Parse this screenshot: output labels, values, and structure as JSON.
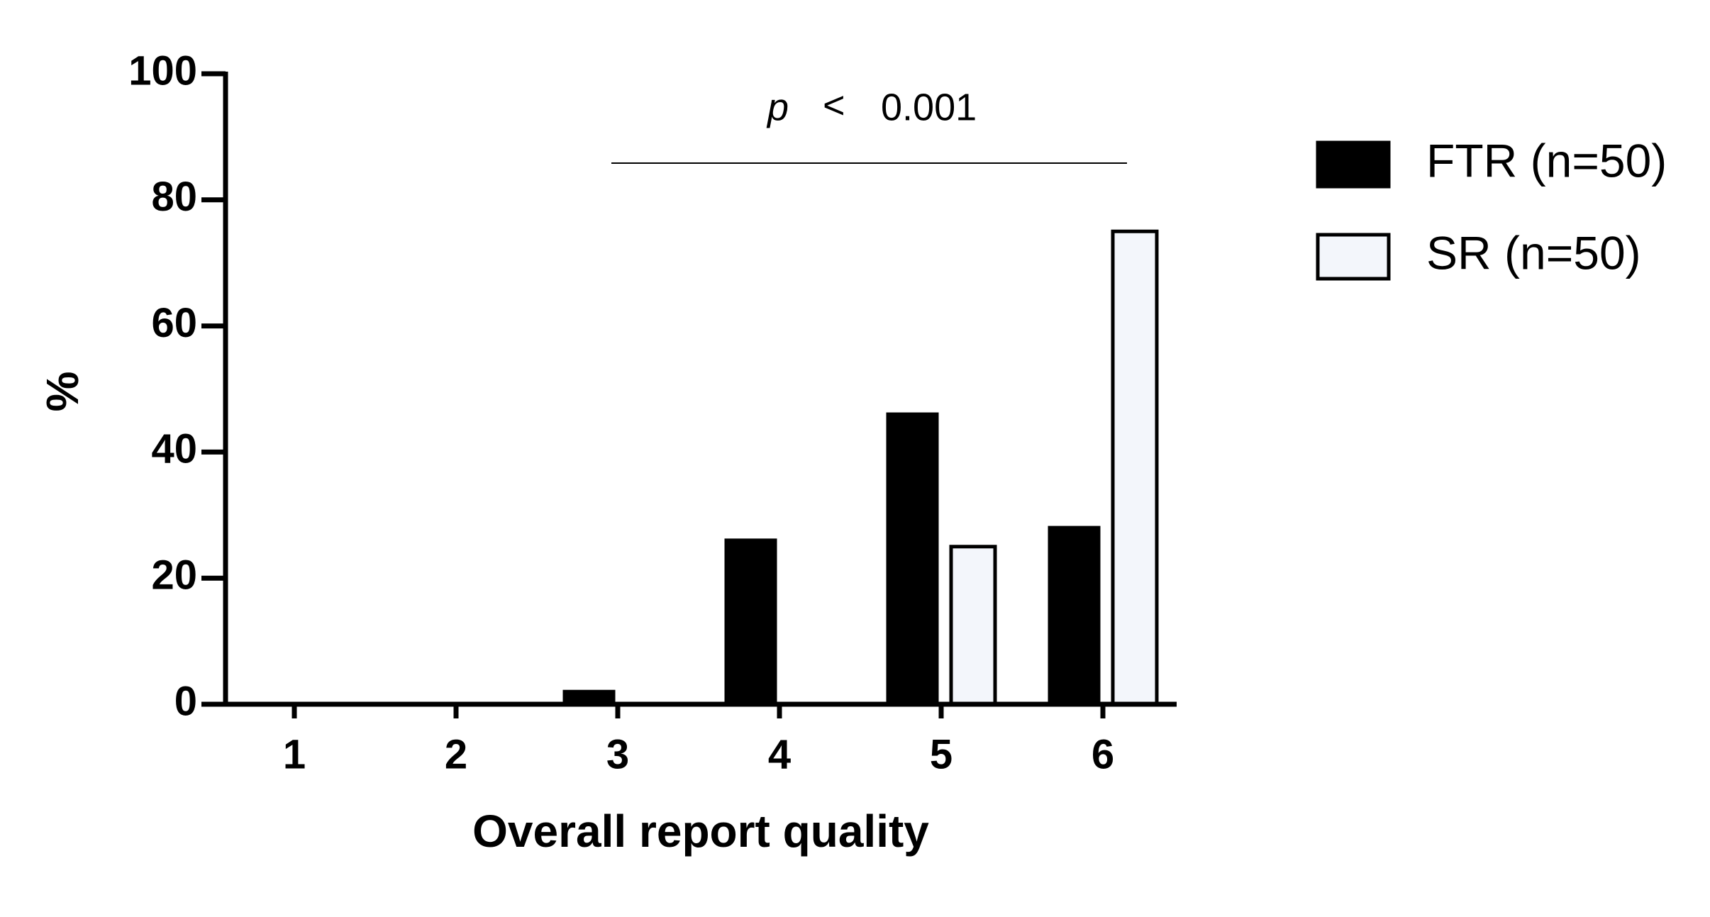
{
  "chart_data": {
    "type": "bar",
    "x_label": "Overall report  quality",
    "y_label": "%",
    "annotation_symbol": "p",
    "annotation_operator": "<",
    "annotation_value": "0.001",
    "categories": [
      "1",
      "2",
      "3",
      "4",
      "5",
      "6"
    ],
    "series": [
      {
        "name": "FTR (n=50)",
        "color": "#000000",
        "values": [
          0,
          0,
          2,
          26,
          46,
          28
        ]
      },
      {
        "name": "SR (n=50)",
        "color": "#f3f6fb",
        "values": [
          0,
          0,
          0,
          0,
          25,
          75
        ]
      }
    ],
    "ylim": [
      0,
      100
    ],
    "yticks": [
      0,
      20,
      40,
      60,
      80,
      100
    ]
  }
}
